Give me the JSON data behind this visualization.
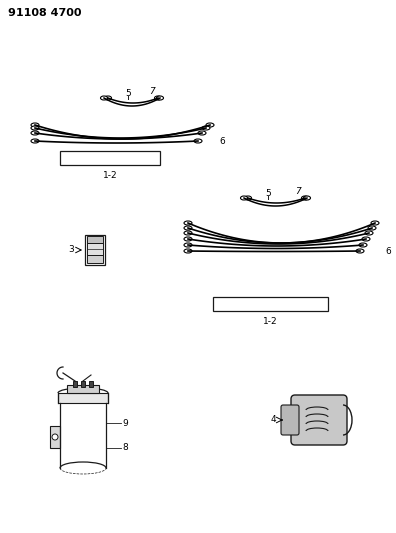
{
  "title": "91108 4700",
  "bg_color": "#ffffff",
  "line_color": "#1a1a1a",
  "fig_width": 3.96,
  "fig_height": 5.33,
  "dpi": 100
}
